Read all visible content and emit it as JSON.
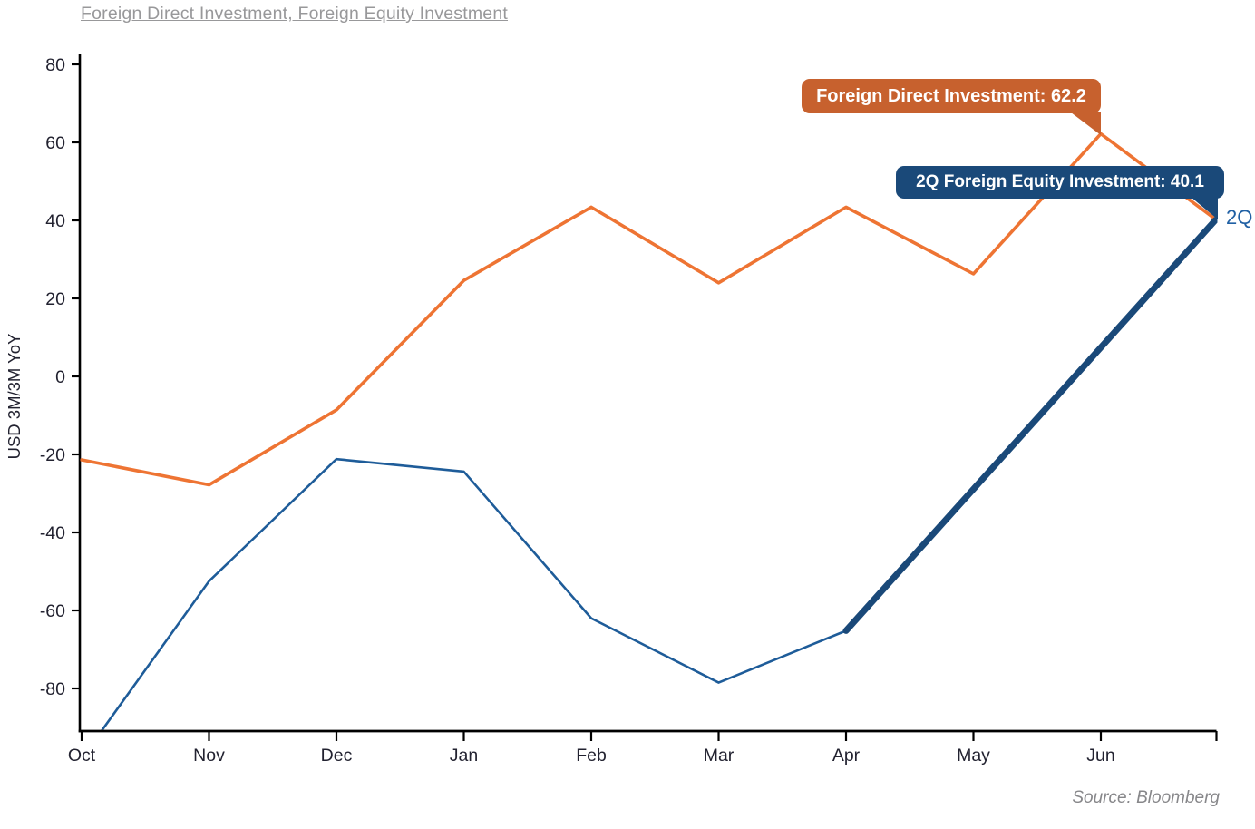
{
  "title": "Foreign Direct Investment, Foreign Equity Investment",
  "source_credit": "Source: Bloomberg",
  "end_label": "2Q",
  "tooltips": {
    "fdi_label": "Foreign Direct Investment: 62.2",
    "fei_label": "2Q Foreign Equity Investment: 40.1"
  },
  "colors": {
    "fdi_line": "#EE7433",
    "fdi_tooltip_bg": "#C7612E",
    "fei_line": "#1E5C99",
    "fei_2q_line": "#1A4979",
    "tooltip_text": "#FFFFFF",
    "end_label_text": "#2060A4",
    "axis_text": "#222230",
    "axis_line": "#000000",
    "title_text": "#98989A",
    "source_text": "#87878A"
  },
  "chart_data": {
    "type": "line",
    "title": "Foreign Direct Investment, Foreign Equity Investment",
    "xlabel": "",
    "ylabel": "USD 3M/3M YoY",
    "categories": [
      "Oct",
      "Nov",
      "Dec",
      "Jan",
      "Feb",
      "Mar",
      "Apr",
      "May",
      "Jun"
    ],
    "y_ticks": [
      80,
      60,
      40,
      20,
      0,
      -20,
      -40,
      -60,
      -80
    ],
    "ylim": [
      -91,
      82
    ],
    "grid": false,
    "legend": "none",
    "series": [
      {
        "name": "Foreign Direct Investment",
        "color": "#EE7433",
        "style": "thin",
        "x": [
          0,
          1,
          2,
          3,
          4,
          5,
          6,
          7,
          8,
          8.9
        ],
        "values": [
          -21.4,
          -27.8,
          -8.6,
          24.6,
          43.4,
          24.0,
          43.4,
          26.3,
          62.2,
          40.3
        ],
        "labeled_point": {
          "x": 8,
          "value": 62.2,
          "label": "Foreign Direct Investment: 62.2"
        }
      },
      {
        "name": "Foreign Equity Investment",
        "color": "#1E5C99",
        "style": "thin",
        "x": [
          0,
          1,
          2,
          3,
          4,
          5,
          6
        ],
        "values": [
          -98,
          -52.5,
          -21.2,
          -24.4,
          -62.0,
          -78.5,
          -65.2
        ]
      },
      {
        "name": "Foreign Equity Investment 2Q segment",
        "color": "#1A4979",
        "style": "thick",
        "x": [
          6,
          8.9
        ],
        "values": [
          -65.2,
          40.1
        ],
        "labeled_point": {
          "x": 8.9,
          "value": 40.1,
          "label": "2Q Foreign Equity Investment: 40.1",
          "end_tag": "2Q"
        }
      }
    ]
  }
}
